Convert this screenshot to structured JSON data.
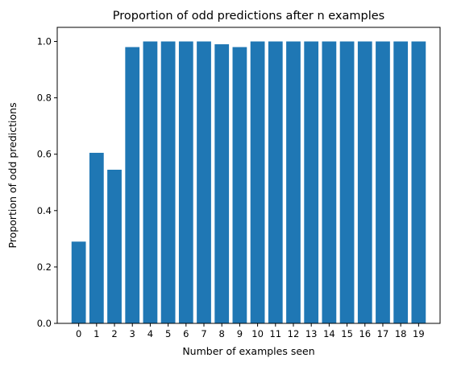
{
  "chart_data": {
    "type": "bar",
    "title": "Proportion of odd predictions after n examples",
    "xlabel": "Number of examples seen",
    "ylabel": "Proportion of odd predictions",
    "categories": [
      "0",
      "1",
      "2",
      "3",
      "4",
      "5",
      "6",
      "7",
      "8",
      "9",
      "10",
      "11",
      "12",
      "13",
      "14",
      "15",
      "16",
      "17",
      "18",
      "19"
    ],
    "values": [
      0.29,
      0.605,
      0.545,
      0.98,
      1.0,
      1.0,
      1.0,
      1.0,
      0.99,
      0.98,
      1.0,
      1.0,
      1.0,
      1.0,
      1.0,
      1.0,
      1.0,
      1.0,
      1.0,
      1.0
    ],
    "ylim": [
      0,
      1.05
    ],
    "yticks": [
      "0.0",
      "0.2",
      "0.4",
      "0.6",
      "0.8",
      "1.0"
    ],
    "bar_color": "#1f77b4",
    "grid": false,
    "legend": "none"
  }
}
